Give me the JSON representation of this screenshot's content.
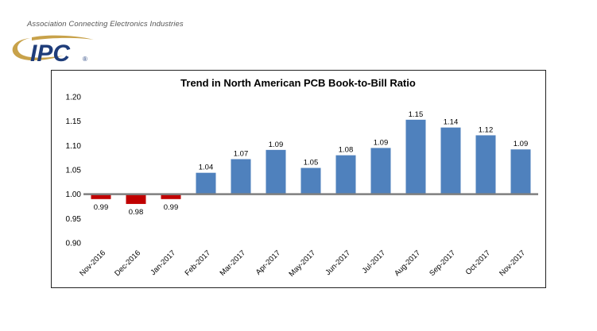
{
  "logo": {
    "tagline": "Association Connecting Electronics Industries",
    "mark_text": "IPC",
    "registered": "®",
    "colors": {
      "swoosh": "#c8a24a",
      "mark": "#1f3d7a"
    }
  },
  "colors": {
    "positive": "#4f81bd",
    "negative": "#c00000",
    "baseline": "#7f7f7f",
    "grid": "#e3e3e3"
  },
  "chart_data": {
    "type": "bar",
    "title": "Trend in North American PCB Book-to-Bill Ratio",
    "xlabel": "",
    "ylabel": "",
    "baseline": 1.0,
    "ylim": [
      0.9,
      1.2
    ],
    "yticks": [
      "1.20",
      "1.15",
      "1.10",
      "1.05",
      "1.00",
      "0.95",
      "0.90"
    ],
    "ytick_values": [
      1.2,
      1.15,
      1.1,
      1.05,
      1.0,
      0.95,
      0.9
    ],
    "grid": false,
    "legend": "none",
    "categories": [
      "Nov-2016",
      "Dec-2016",
      "Jan-2017",
      "Feb-2017",
      "Mar-2017",
      "Apr-2017",
      "May-2017",
      "Jun-2017",
      "Jul-2017",
      "Aug-2017",
      "Sep-2017",
      "Oct-2017",
      "Nov-2017"
    ],
    "values": [
      0.99,
      0.98,
      0.99,
      1.044,
      1.072,
      1.091,
      1.054,
      1.08,
      1.095,
      1.153,
      1.137,
      1.121,
      1.092
    ],
    "data_labels": [
      "0.99",
      "0.98",
      "0.99",
      "1.04",
      "1.07",
      "1.09",
      "1.05",
      "1.08",
      "1.09",
      "1.15",
      "1.14",
      "1.12",
      "1.09"
    ]
  }
}
